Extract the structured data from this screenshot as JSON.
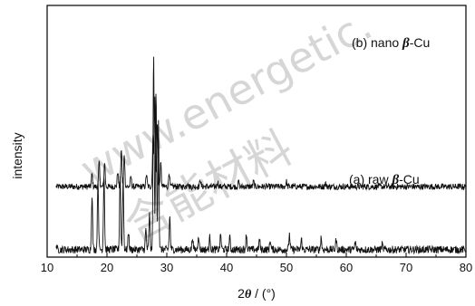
{
  "chart_data": {
    "type": "line",
    "xlabel": {
      "value": "2",
      "symbol": "θ",
      "unit": " / (°)"
    },
    "ylabel": "intensity",
    "xlim": [
      10,
      80
    ],
    "xticks": [
      "10",
      "20",
      "30",
      "40",
      "50",
      "60",
      "70",
      "80"
    ],
    "series": [
      {
        "id": "b",
        "label_prefix": "(b) nano ",
        "label_symbol": "β",
        "label_suffix": "-Cu",
        "baseline": 0.28,
        "noise": 0.012,
        "peaks": [
          [
            17.5,
            0.05
          ],
          [
            18.7,
            0.1
          ],
          [
            19.6,
            0.1
          ],
          [
            21.8,
            0.06
          ],
          [
            22.4,
            0.15
          ],
          [
            22.9,
            0.13
          ],
          [
            24.0,
            0.04
          ],
          [
            26.6,
            0.05
          ],
          [
            27.7,
            0.2
          ],
          [
            28.0,
            0.35
          ],
          [
            28.4,
            0.25
          ],
          [
            29.0,
            0.09
          ],
          [
            30.4,
            0.06
          ],
          [
            33.5,
            0.02
          ],
          [
            35.6,
            0.03
          ],
          [
            38.5,
            0.02
          ],
          [
            42.0,
            0.02
          ],
          [
            44.5,
            0.02
          ],
          [
            50.0,
            0.02
          ],
          [
            56.5,
            0.015
          ]
        ]
      },
      {
        "id": "a",
        "label_prefix": "(a) raw ",
        "label_symbol": "β",
        "label_suffix": "-Cu",
        "baseline": 0.03,
        "noise": 0.015,
        "peaks": [
          [
            11.5,
            0.02
          ],
          [
            17.5,
            0.22
          ],
          [
            18.5,
            0.28
          ],
          [
            19.5,
            0.3
          ],
          [
            22.2,
            0.3
          ],
          [
            22.7,
            0.29
          ],
          [
            23.6,
            0.07
          ],
          [
            26.5,
            0.08
          ],
          [
            27.1,
            0.14
          ],
          [
            27.8,
            0.78
          ],
          [
            28.2,
            0.62
          ],
          [
            28.6,
            0.52
          ],
          [
            30.5,
            0.13
          ],
          [
            34.3,
            0.05
          ],
          [
            35.3,
            0.06
          ],
          [
            37.2,
            0.05
          ],
          [
            39.0,
            0.06
          ],
          [
            40.5,
            0.05
          ],
          [
            43.3,
            0.06
          ],
          [
            45.5,
            0.04
          ],
          [
            47.3,
            0.04
          ],
          [
            50.5,
            0.06
          ],
          [
            52.5,
            0.04
          ],
          [
            55.8,
            0.05
          ],
          [
            58.3,
            0.04
          ],
          [
            61.5,
            0.03
          ],
          [
            66.0,
            0.02
          ]
        ]
      }
    ]
  },
  "watermark": {
    "url_text": "www.energetic.",
    "cn_text": "含能材料"
  },
  "colors": {
    "axis": "#000000",
    "trace": "#111111",
    "watermark": "#d6d6d6"
  }
}
